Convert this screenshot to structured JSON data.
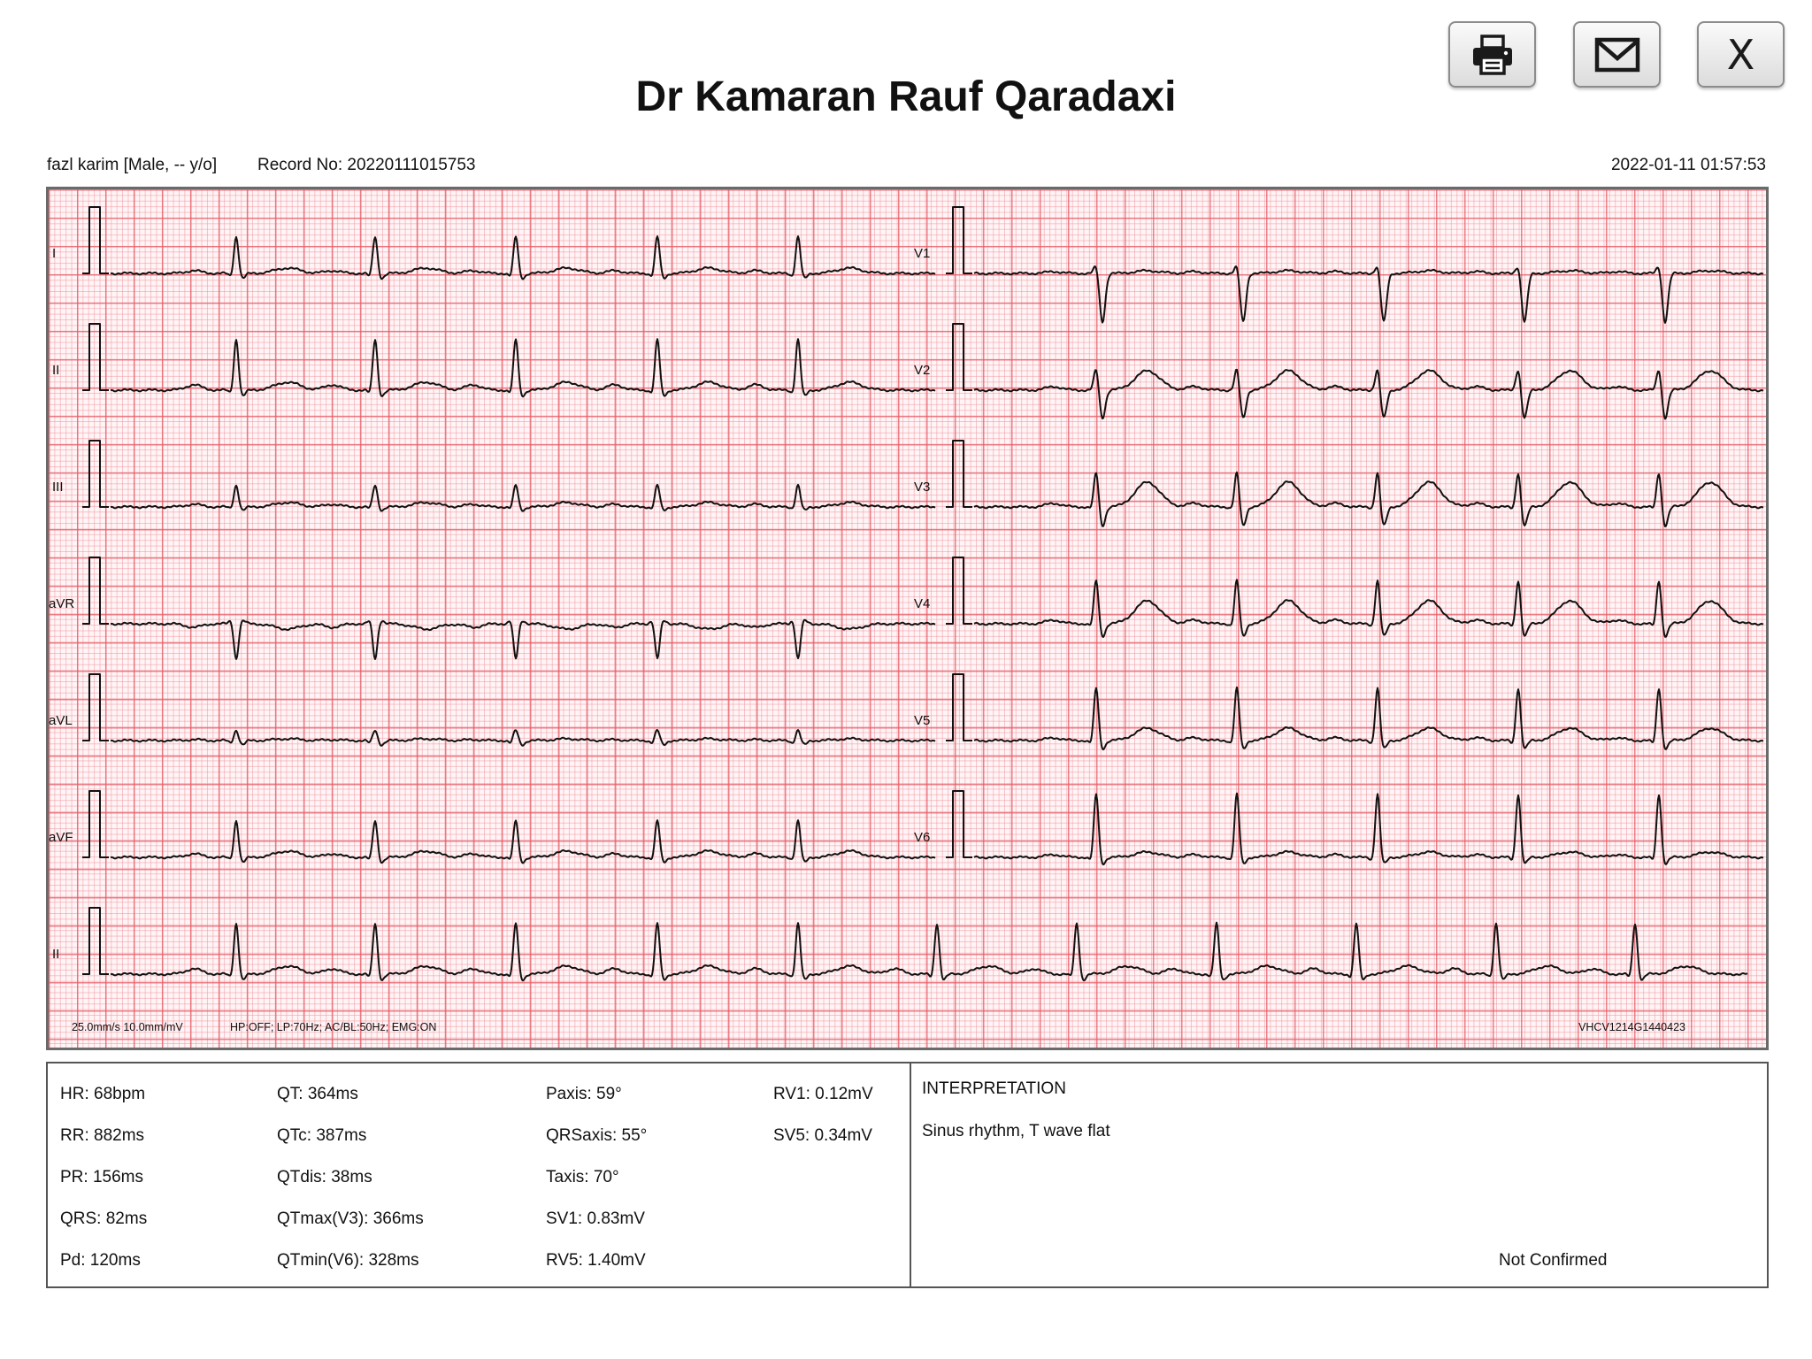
{
  "title": "Dr Kamaran Rauf Qaradaxi",
  "toolbar": {
    "print_icon": "printer-icon",
    "email_icon": "envelope-icon",
    "close_label": "X"
  },
  "patient": {
    "info": "fazl karim [Male, -- y/o]",
    "record": "Record No: 20220111015753",
    "datetime": "2022-01-11 01:57:53"
  },
  "ecg": {
    "leads_left": [
      "I",
      "II",
      "III",
      "aVR",
      "aVL",
      "aVF"
    ],
    "leads_right": [
      "V1",
      "V2",
      "V3",
      "V4",
      "V5",
      "V6"
    ],
    "rhythm_lead": "II",
    "settings": "25.0mm/s  10.0mm/mV",
    "filters": "HP:OFF; LP:70Hz; AC/BL:50Hz; EMG:ON",
    "device": "VHCV1214G1440423",
    "colors": {
      "trace": "#111111",
      "grid_major": "#e65a64",
      "grid_minor": "#f096a0",
      "background": "#fff5f6"
    }
  },
  "measurements": {
    "col1": [
      "HR: 68bpm",
      "RR: 882ms",
      "PR: 156ms",
      "QRS: 82ms",
      "Pd: 120ms"
    ],
    "col2": [
      "QT: 364ms",
      "QTc: 387ms",
      "QTdis: 38ms",
      "QTmax(V3): 366ms",
      "QTmin(V6): 328ms"
    ],
    "col3": [
      "Paxis: 59°",
      "QRSaxis: 55°",
      "Taxis: 70°",
      "SV1: 0.83mV",
      "RV5: 1.40mV"
    ],
    "col4": [
      "RV1: 0.12mV",
      "SV5: 0.34mV"
    ]
  },
  "interpretation": {
    "title": "INTERPRETATION",
    "text": "Sinus rhythm, T wave flat",
    "status": "Not Confirmed"
  }
}
